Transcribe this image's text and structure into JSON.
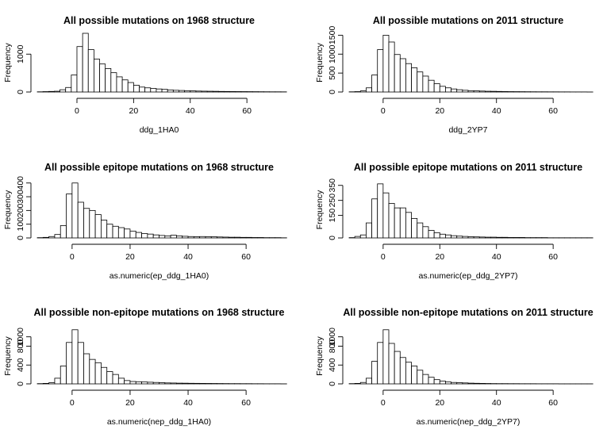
{
  "chart_data": [
    {
      "type": "bar",
      "title": "All possible mutations on 1968 structure",
      "xlabel": "ddg_1HA0",
      "ylabel": "Frequency",
      "bin_width": 2,
      "bin_starts": [
        -14,
        -12,
        -10,
        -8,
        -6,
        -4,
        -2,
        0,
        2,
        4,
        6,
        8,
        10,
        12,
        14,
        16,
        18,
        20,
        22,
        24,
        26,
        28,
        30,
        32,
        34,
        36,
        38,
        40,
        42,
        44,
        46,
        48,
        50,
        52,
        54,
        56,
        58,
        60,
        62,
        64,
        66,
        68,
        70,
        72
      ],
      "values": [
        5,
        10,
        15,
        20,
        60,
        120,
        450,
        1200,
        1550,
        1120,
        870,
        740,
        620,
        510,
        400,
        320,
        250,
        180,
        130,
        110,
        95,
        80,
        70,
        55,
        45,
        40,
        35,
        30,
        25,
        22,
        20,
        18,
        15,
        14,
        12,
        11,
        10,
        9,
        8,
        7,
        6,
        5,
        5,
        4
      ],
      "xlim": [
        -14,
        72
      ],
      "ylim": [
        0,
        1550
      ],
      "xticks": [
        0,
        20,
        40,
        60
      ],
      "yticks": [
        0,
        1000
      ]
    },
    {
      "type": "bar",
      "title": "All possible mutations on 2011 structure",
      "xlabel": "ddg_2YP7",
      "ylabel": "Frequency",
      "bin_width": 2,
      "bin_starts": [
        -12,
        -10,
        -8,
        -6,
        -4,
        -2,
        0,
        2,
        4,
        6,
        8,
        10,
        12,
        14,
        16,
        18,
        20,
        22,
        24,
        26,
        28,
        30,
        32,
        34,
        36,
        38,
        40,
        42,
        44,
        46,
        48,
        50,
        52,
        54,
        56,
        58,
        60,
        62,
        64,
        66,
        68,
        70,
        72
      ],
      "values": [
        5,
        10,
        30,
        110,
        450,
        1120,
        1500,
        1320,
        990,
        880,
        750,
        640,
        530,
        420,
        310,
        220,
        150,
        110,
        80,
        60,
        45,
        35,
        30,
        25,
        20,
        18,
        15,
        12,
        10,
        9,
        8,
        7,
        6,
        5,
        5,
        4,
        4,
        3,
        3,
        2,
        2,
        2,
        1
      ],
      "xlim": [
        -12,
        72
      ],
      "ylim": [
        0,
        1550
      ],
      "xticks": [
        0,
        20,
        40,
        60
      ],
      "yticks": [
        0,
        500,
        1000,
        1500
      ]
    },
    {
      "type": "bar",
      "title": "All possible epitope mutations on 1968 structure",
      "xlabel": "as.numeric(ep_ddg_1HA0)",
      "ylabel": "Frequency",
      "bin_width": 2,
      "bin_starts": [
        -12,
        -10,
        -8,
        -6,
        -4,
        -2,
        0,
        2,
        4,
        6,
        8,
        10,
        12,
        14,
        16,
        18,
        20,
        22,
        24,
        26,
        28,
        30,
        32,
        34,
        36,
        38,
        40,
        42,
        44,
        46,
        48,
        50,
        52,
        54,
        56,
        58,
        60,
        62,
        64,
        66,
        68,
        70,
        72
      ],
      "values": [
        2,
        4,
        10,
        25,
        90,
        320,
        400,
        260,
        215,
        200,
        170,
        130,
        100,
        85,
        75,
        65,
        50,
        40,
        32,
        28,
        22,
        18,
        15,
        20,
        15,
        12,
        10,
        9,
        10,
        9,
        8,
        7,
        6,
        5,
        5,
        4,
        4,
        3,
        3,
        2,
        2,
        2,
        1
      ],
      "xlim": [
        -12,
        72
      ],
      "ylim": [
        0,
        410
      ],
      "xticks": [
        0,
        20,
        40,
        60
      ],
      "yticks": [
        0,
        100,
        200,
        300,
        400
      ]
    },
    {
      "type": "bar",
      "title": "All possible epitope mutations on 2011 structure",
      "xlabel": "as.numeric(ep_ddg_2YP7)",
      "ylabel": "Frequency",
      "bin_width": 2,
      "bin_starts": [
        -12,
        -10,
        -8,
        -6,
        -4,
        -2,
        0,
        2,
        4,
        6,
        8,
        10,
        12,
        14,
        16,
        18,
        20,
        22,
        24,
        26,
        28,
        30,
        32,
        34,
        36,
        38,
        40,
        42,
        44,
        46,
        48,
        50,
        52,
        54,
        56,
        58,
        60,
        62,
        64,
        66,
        68,
        70,
        72
      ],
      "values": [
        2,
        10,
        20,
        100,
        260,
        360,
        300,
        230,
        200,
        200,
        170,
        130,
        100,
        75,
        50,
        35,
        25,
        20,
        15,
        12,
        10,
        8,
        7,
        6,
        5,
        5,
        4,
        4,
        3,
        3,
        3,
        2,
        2,
        2,
        2,
        1,
        1,
        1,
        1,
        1,
        1,
        1,
        1
      ],
      "xlim": [
        -12,
        72
      ],
      "ylim": [
        0,
        375
      ],
      "xticks": [
        0,
        20,
        40,
        60
      ],
      "yticks": [
        0,
        150,
        250,
        350
      ]
    },
    {
      "type": "bar",
      "title": "All possible non-epitope mutations on 1968 structure",
      "xlabel": "as.numeric(nep_ddg_1HA0)",
      "ylabel": "Frequency",
      "bin_width": 2,
      "bin_starts": [
        -12,
        -10,
        -8,
        -6,
        -4,
        -2,
        0,
        2,
        4,
        6,
        8,
        10,
        12,
        14,
        16,
        18,
        20,
        22,
        24,
        26,
        28,
        30,
        32,
        34,
        36,
        38,
        40,
        42,
        44,
        46,
        48,
        50,
        52,
        54,
        56,
        58,
        60,
        62,
        64,
        66,
        68,
        70,
        72
      ],
      "values": [
        5,
        10,
        25,
        120,
        380,
        880,
        1150,
        880,
        640,
        520,
        450,
        350,
        260,
        200,
        120,
        70,
        50,
        45,
        40,
        35,
        30,
        25,
        20,
        18,
        15,
        14,
        12,
        11,
        10,
        9,
        8,
        7,
        6,
        5,
        5,
        4,
        4,
        3,
        3,
        2,
        2,
        2,
        1
      ],
      "xlim": [
        -12,
        72
      ],
      "ylim": [
        0,
        1180
      ],
      "xticks": [
        0,
        20,
        40,
        60
      ],
      "yticks": [
        0,
        400,
        800,
        1000
      ]
    },
    {
      "type": "bar",
      "title": "All possible non-epitope mutations on 2011 structure",
      "xlabel": "as.numeric(nep_ddg_2YP7)",
      "ylabel": "Frequency",
      "bin_width": 2,
      "bin_starts": [
        -12,
        -10,
        -8,
        -6,
        -4,
        -2,
        0,
        2,
        4,
        6,
        8,
        10,
        12,
        14,
        16,
        18,
        20,
        22,
        24,
        26,
        28,
        30,
        32,
        34,
        36,
        38,
        40,
        42,
        44,
        46,
        48,
        50,
        52,
        54,
        56,
        58,
        60,
        62,
        64,
        66,
        68,
        70,
        72
      ],
      "values": [
        5,
        10,
        30,
        120,
        480,
        880,
        1150,
        860,
        690,
        560,
        460,
        380,
        290,
        200,
        140,
        90,
        60,
        40,
        30,
        25,
        20,
        15,
        12,
        10,
        8,
        6,
        5,
        5,
        4,
        4,
        3,
        3,
        3,
        2,
        2,
        2,
        2,
        1,
        1,
        1,
        1,
        1,
        1
      ],
      "xlim": [
        -12,
        72
      ],
      "ylim": [
        0,
        1180
      ],
      "xticks": [
        0,
        20,
        40,
        60
      ],
      "yticks": [
        0,
        400,
        800,
        1000
      ]
    }
  ]
}
